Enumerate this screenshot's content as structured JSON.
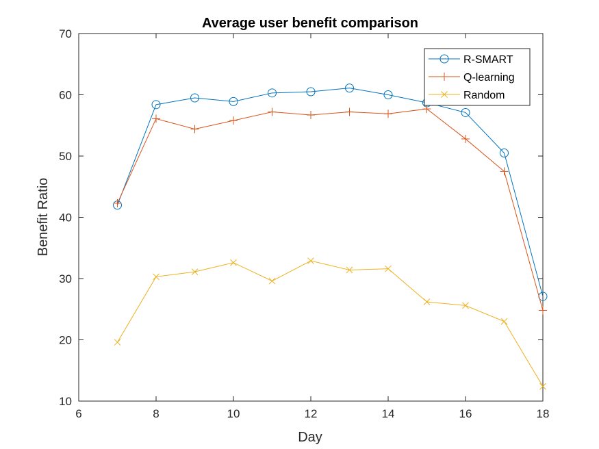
{
  "chart_data": {
    "type": "line",
    "title": "Average user benefit comparison",
    "xlabel": "Day",
    "ylabel": "Benefit Ratio",
    "xlim": [
      6,
      18
    ],
    "ylim": [
      10,
      70
    ],
    "xticks": [
      6,
      8,
      10,
      12,
      14,
      16,
      18
    ],
    "yticks": [
      10,
      20,
      30,
      40,
      50,
      60,
      70
    ],
    "grid": false,
    "legend_position": "top-right",
    "x": [
      7,
      8,
      9,
      10,
      11,
      12,
      13,
      14,
      15,
      16,
      17,
      18
    ],
    "series": [
      {
        "name": "R-SMART",
        "color": "#0072BD",
        "marker": "circle",
        "values": [
          42.0,
          58.4,
          59.5,
          58.9,
          60.3,
          60.5,
          61.1,
          60.0,
          58.7,
          57.1,
          50.5,
          27.1
        ]
      },
      {
        "name": "Q-learning",
        "color": "#D95319",
        "marker": "plus",
        "values": [
          42.3,
          56.1,
          54.4,
          55.8,
          57.2,
          56.7,
          57.2,
          56.9,
          57.7,
          52.8,
          47.5,
          24.8
        ]
      },
      {
        "name": "Random",
        "color": "#EDB120",
        "marker": "x",
        "values": [
          19.6,
          30.3,
          31.1,
          32.6,
          29.6,
          32.9,
          31.4,
          31.6,
          26.2,
          25.6,
          23.0,
          12.4
        ]
      }
    ]
  }
}
